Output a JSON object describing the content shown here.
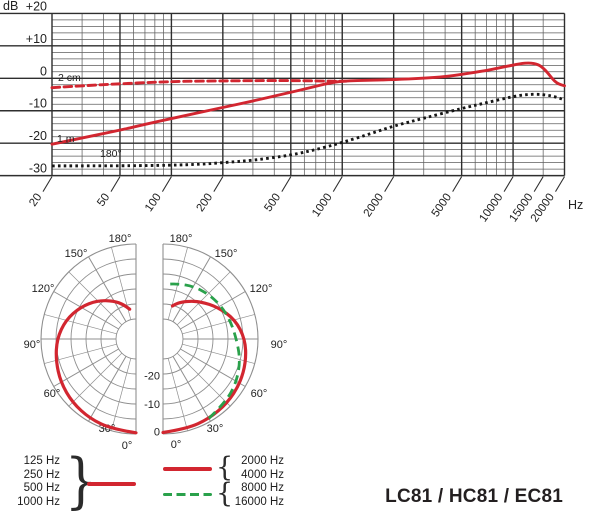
{
  "title": "LC81 / HC81 / EC81",
  "chart_data": [
    {
      "type": "line",
      "name": "frequency-response",
      "ylabel": "dB",
      "xunit_label": "Hz",
      "xlim": [
        20,
        20000
      ],
      "ylim": [
        -30,
        20
      ],
      "grid": true,
      "xticks": [
        20,
        50,
        100,
        200,
        500,
        1000,
        2000,
        5000,
        10000,
        15000,
        20000
      ],
      "yticks": [
        20,
        10,
        0,
        -10,
        -20,
        -30
      ],
      "ytick_labels": [
        "+20",
        "+10",
        "0",
        "-10",
        "-20",
        "-30"
      ],
      "major_x": [
        20,
        50,
        100,
        200,
        500,
        1000,
        2000,
        5000,
        10000,
        20000
      ],
      "minor_x": [
        30,
        40,
        60,
        70,
        80,
        90,
        300,
        400,
        600,
        700,
        800,
        900,
        3000,
        4000,
        6000,
        7000,
        8000,
        9000,
        15000
      ],
      "minor_db_step": 2,
      "series": [
        {
          "name": "2 cm",
          "style": "dashed",
          "color": "#d22630",
          "points": [
            [
              20,
              -2.9
            ],
            [
              30,
              -2.3
            ],
            [
              50,
              -1.7
            ],
            [
              80,
              -1.2
            ],
            [
              120,
              -0.9
            ],
            [
              200,
              -0.8
            ],
            [
              350,
              -0.7
            ],
            [
              500,
              -0.7
            ],
            [
              700,
              -0.8
            ],
            [
              900,
              -0.9
            ],
            [
              1050,
              -0.9
            ]
          ]
        },
        {
          "name": "1 m",
          "style": "solid",
          "color": "#d22630",
          "points": [
            [
              20,
              -20.3
            ],
            [
              30,
              -18.4
            ],
            [
              50,
              -16
            ],
            [
              70,
              -14.2
            ],
            [
              100,
              -12.4
            ],
            [
              150,
              -10.4
            ],
            [
              200,
              -9
            ],
            [
              300,
              -7
            ],
            [
              500,
              -4.3
            ],
            [
              650,
              -2.9
            ],
            [
              800,
              -1.7
            ],
            [
              1000,
              -0.8
            ],
            [
              1500,
              -0.6
            ],
            [
              2000,
              -0.4
            ],
            [
              3000,
              0
            ],
            [
              4000,
              0.5
            ],
            [
              5000,
              1.2
            ],
            [
              7000,
              2.4
            ],
            [
              9000,
              3.6
            ],
            [
              11000,
              4.5
            ],
            [
              12500,
              4.8
            ],
            [
              14000,
              4.3
            ],
            [
              15000,
              3.2
            ],
            [
              16000,
              1.6
            ],
            [
              17000,
              -0.2
            ],
            [
              18000,
              -1.4
            ],
            [
              19000,
              -2
            ],
            [
              20000,
              -2.3
            ]
          ]
        },
        {
          "name": "180°",
          "style": "dotted",
          "color": "#161616",
          "points": [
            [
              20,
              -27
            ],
            [
              50,
              -27
            ],
            [
              100,
              -26.8
            ],
            [
              150,
              -26.5
            ],
            [
              200,
              -26
            ],
            [
              300,
              -25.3
            ],
            [
              500,
              -23.7
            ],
            [
              700,
              -22
            ],
            [
              1000,
              -19.8
            ],
            [
              1500,
              -16.9
            ],
            [
              2000,
              -14.7
            ],
            [
              3000,
              -12.3
            ],
            [
              5000,
              -9.3
            ],
            [
              7000,
              -7.5
            ],
            [
              10000,
              -5.6
            ],
            [
              12000,
              -5
            ],
            [
              14000,
              -4.9
            ],
            [
              16000,
              -5.2
            ],
            [
              18000,
              -5.8
            ],
            [
              20000,
              -6.7
            ]
          ]
        }
      ],
      "annotations": [
        {
          "text": "2 cm",
          "x": 58,
          "y": 81
        },
        {
          "text": "1 m",
          "x": 57,
          "y": 142
        },
        {
          "text": "180°",
          "x": 100,
          "y": 157
        }
      ]
    },
    {
      "type": "polar",
      "rings_db": [
        0,
        -5,
        -10,
        -15,
        -20,
        -25
      ],
      "ring_axis_labels": [
        "-20",
        "-10",
        "0"
      ],
      "angle_labels": [
        "180°",
        "150°",
        "120°",
        "90°",
        "60°",
        "30°",
        "0°"
      ],
      "halves": [
        {
          "side": "left",
          "series": [
            {
              "name": "125-1000 Hz",
              "color": "#d22630",
              "style": "solid",
              "points_deg_db": [
                [
                  0,
                  -0.4
                ],
                [
                  15,
                  -0.6
                ],
                [
                  30,
                  -1.0
                ],
                [
                  45,
                  -1.7
                ],
                [
                  60,
                  -2.7
                ],
                [
                  75,
                  -4.0
                ],
                [
                  90,
                  -5.3
                ],
                [
                  105,
                  -7.4
                ],
                [
                  120,
                  -10.3
                ],
                [
                  135,
                  -13.5
                ],
                [
                  150,
                  -17
                ],
                [
                  160,
                  -19.5
                ],
                [
                  168,
                  -21.5
                ]
              ]
            }
          ]
        },
        {
          "side": "right",
          "series": [
            {
              "name": "2000-4000 Hz",
              "color": "#d22630",
              "style": "solid",
              "points_deg_db": [
                [
                  0,
                  -0.5
                ],
                [
                  15,
                  -0.7
                ],
                [
                  30,
                  -1.0
                ],
                [
                  45,
                  -1.4
                ],
                [
                  60,
                  -2.0
                ],
                [
                  75,
                  -3.0
                ],
                [
                  90,
                  -4.3
                ],
                [
                  105,
                  -6.8
                ],
                [
                  120,
                  -10.5
                ],
                [
                  135,
                  -14
                ],
                [
                  148,
                  -16.8
                ],
                [
                  158,
                  -18.8
                ],
                [
                  164,
                  -20.2
                ]
              ]
            },
            {
              "name": "8000-16000 Hz",
              "color": "#2aa14b",
              "style": "dashed",
              "points_deg_db": [
                [
                  30,
                  -1.1
                ],
                [
                  45,
                  -2.0
                ],
                [
                  60,
                  -3.3
                ],
                [
                  75,
                  -5.0
                ],
                [
                  90,
                  -7.2
                ],
                [
                  105,
                  -8.4
                ],
                [
                  120,
                  -9.4
                ],
                [
                  135,
                  -10.4
                ],
                [
                  150,
                  -11.4
                ],
                [
                  165,
                  -12.6
                ],
                [
                  177,
                  -13.4
                ]
              ]
            }
          ]
        }
      ]
    }
  ],
  "legend": {
    "left_group": {
      "labels": [
        "125 Hz",
        "250 Hz",
        "500 Hz",
        "1000 Hz"
      ],
      "brace": "}",
      "line": {
        "style": "solid",
        "color": "#d22630"
      }
    },
    "right_group": {
      "labels": [
        "2000 Hz",
        "4000 Hz",
        "8000 Hz",
        "16000 Hz"
      ],
      "braces": [
        "{",
        "{"
      ],
      "lines": [
        {
          "style": "solid",
          "color": "#d22630"
        },
        {
          "style": "dashed",
          "color": "#2aa14b"
        }
      ]
    }
  }
}
